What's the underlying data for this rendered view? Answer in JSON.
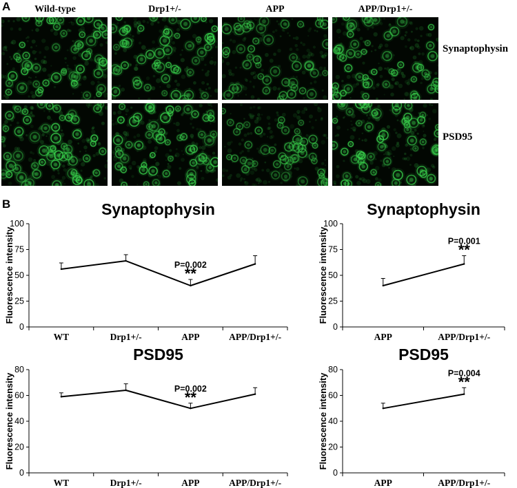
{
  "panel_a": {
    "letter": "A",
    "columns": [
      "Wild-type",
      "Drp1+/-",
      "APP",
      "APP/Drp1+/-"
    ],
    "rows": [
      "Synaptophysin",
      "PSD95"
    ],
    "fluorescence_color": "#3cdc50",
    "relative_brightness": [
      [
        0.9,
        0.85,
        0.6,
        0.85
      ],
      [
        1.0,
        1.0,
        0.6,
        1.0
      ]
    ]
  },
  "panel_b": {
    "letter": "B"
  },
  "chart_data": [
    {
      "type": "line",
      "title": "Synaptophysin",
      "ylabel": "Fluorescence intensity",
      "categories": [
        "WT",
        "Drp1+/-",
        "APP",
        "APP/Drp1+/-"
      ],
      "values": [
        56,
        64,
        40,
        61
      ],
      "errors": [
        6,
        6,
        6,
        8
      ],
      "ylim": [
        0,
        100
      ],
      "yticks": [
        "0",
        "25",
        "50",
        "75",
        "100"
      ],
      "annotation": {
        "category": "APP",
        "p_text": "P=0.002",
        "stars": "**"
      }
    },
    {
      "type": "line",
      "title": "Synaptophysin",
      "ylabel": "Fluorescence intensity",
      "categories": [
        "APP",
        "APP/Drp1+/-"
      ],
      "values": [
        40,
        61
      ],
      "errors": [
        7,
        8
      ],
      "ylim": [
        0,
        100
      ],
      "yticks": [
        "0",
        "25",
        "50",
        "75",
        "100"
      ],
      "annotation": {
        "category": "APP/Drp1+/-",
        "p_text": "P=0.001",
        "stars": "**"
      }
    },
    {
      "type": "line",
      "title": "PSD95",
      "ylabel": "Fluorescence intensity",
      "categories": [
        "WT",
        "Drp1+/-",
        "APP",
        "APP/Drp1+/-"
      ],
      "values": [
        59,
        64,
        50,
        61
      ],
      "errors": [
        3,
        5,
        4,
        5
      ],
      "ylim": [
        0,
        80
      ],
      "yticks": [
        "0",
        "20",
        "40",
        "60",
        "80"
      ],
      "annotation": {
        "category": "APP",
        "p_text": "P=0.002",
        "stars": "**"
      }
    },
    {
      "type": "line",
      "title": "PSD95",
      "ylabel": "Fluorescence intensity",
      "categories": [
        "APP",
        "APP/Drp1+/-"
      ],
      "values": [
        50,
        61
      ],
      "errors": [
        4,
        5
      ],
      "ylim": [
        0,
        80
      ],
      "yticks": [
        "0",
        "20",
        "40",
        "60",
        "80"
      ],
      "annotation": {
        "category": "APP/Drp1+/-",
        "p_text": "P=0.004",
        "stars": "**"
      }
    }
  ]
}
